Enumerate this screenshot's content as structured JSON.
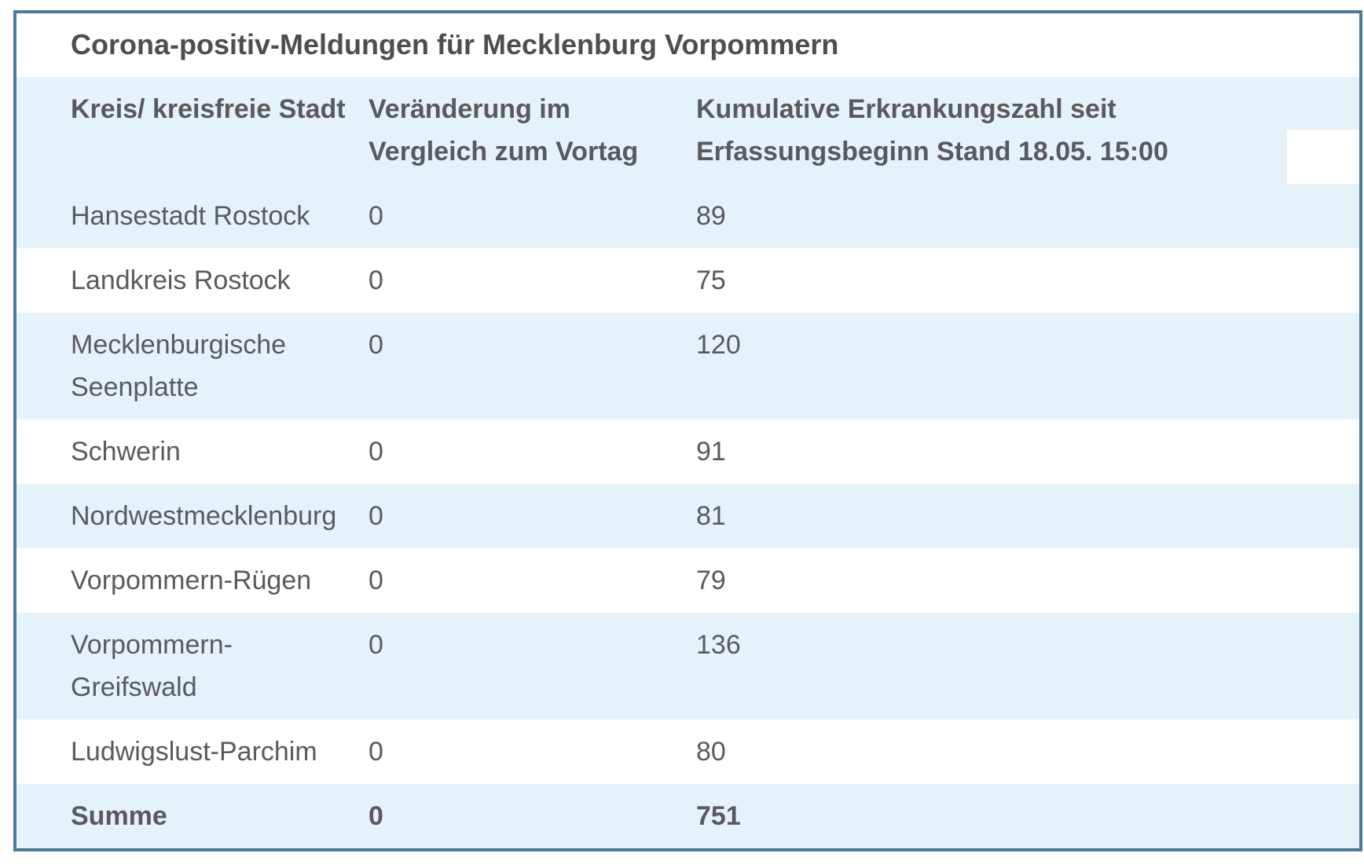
{
  "colors": {
    "border": "#4b7a9b",
    "row_highlight": "#e6f2fa",
    "text": "#595a5c",
    "title_text": "#4d4e50",
    "page_background": "#ffffff"
  },
  "table": {
    "title": "Corona-positiv-Meldungen für Mecklenburg Vorpommern",
    "columns": [
      {
        "id": "district",
        "lines": [
          "Kreis/ kreisfreie Stadt"
        ]
      },
      {
        "id": "change",
        "lines": [
          "Veränderung im",
          "Vergleich zum Vortag"
        ]
      },
      {
        "id": "cumulative",
        "lines": [
          "Kumulative Erkrankungszahl seit",
          "Erfassungsbeginn Stand 18.05. 15:00"
        ]
      }
    ],
    "rows": [
      {
        "name_lines": [
          "Hansestadt Rostock"
        ],
        "change": "0",
        "cumulative": "89",
        "highlight": true,
        "bold": false
      },
      {
        "name_lines": [
          "Landkreis Rostock"
        ],
        "change": "0",
        "cumulative": "75",
        "highlight": false,
        "bold": false
      },
      {
        "name_lines": [
          "Mecklenburgische",
          "Seenplatte"
        ],
        "change": "0",
        "cumulative": "120",
        "highlight": true,
        "bold": false
      },
      {
        "name_lines": [
          "Schwerin"
        ],
        "change": "0",
        "cumulative": "91",
        "highlight": false,
        "bold": false
      },
      {
        "name_lines": [
          "Nordwestmecklenburg"
        ],
        "change": "0",
        "cumulative": "81",
        "highlight": true,
        "bold": false
      },
      {
        "name_lines": [
          "Vorpommern-Rügen"
        ],
        "change": "0",
        "cumulative": "79",
        "highlight": false,
        "bold": false
      },
      {
        "name_lines": [
          "Vorpommern-",
          "Greifswald"
        ],
        "change": "0",
        "cumulative": "136",
        "highlight": true,
        "bold": false
      },
      {
        "name_lines": [
          "Ludwigslust-Parchim"
        ],
        "change": "0",
        "cumulative": "80",
        "highlight": false,
        "bold": false
      },
      {
        "name_lines": [
          "Summe"
        ],
        "change": "0",
        "cumulative": "751",
        "highlight": true,
        "bold": true
      }
    ]
  }
}
